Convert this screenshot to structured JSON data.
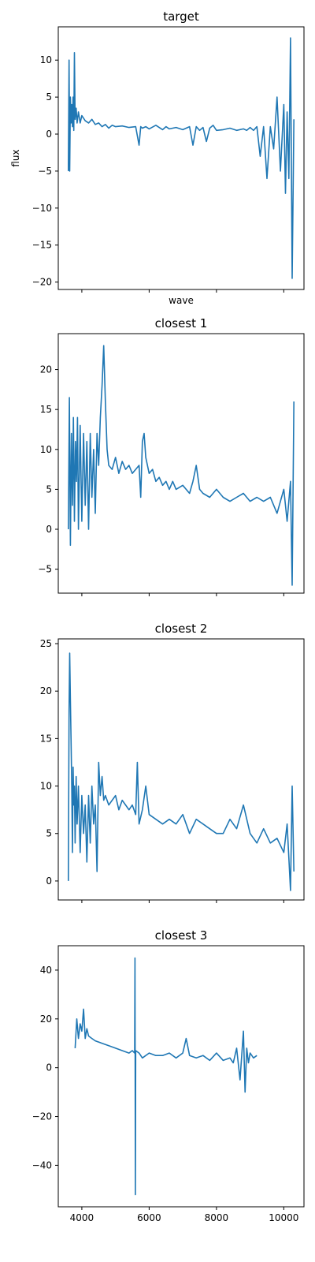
{
  "chart_data": [
    {
      "type": "line",
      "title": "target",
      "xlabel": "wave",
      "ylabel": "flux",
      "xlim": [
        3300,
        10600
      ],
      "ylim": [
        -21,
        14.5
      ],
      "xticks": [
        4000,
        6000,
        8000,
        10000
      ],
      "xticklabels": [],
      "yticks": [
        10,
        5,
        0,
        -5,
        -10,
        -15,
        -20
      ],
      "yticklabels": [
        "10",
        "5",
        "0",
        "−5",
        "−10",
        "−15",
        "−20"
      ],
      "color": "#1f77b4",
      "grid": false,
      "series": [
        {
          "x": [
            3600,
            3620,
            3640,
            3660,
            3680,
            3700,
            3720,
            3740,
            3760,
            3780,
            3800,
            3830,
            3860,
            3900,
            3950,
            4000,
            4100,
            4200,
            4300,
            4400,
            4500,
            4600,
            4700,
            4800,
            4900,
            5000,
            5200,
            5400,
            5600,
            5700,
            5750,
            5800,
            5900,
            6000,
            6200,
            6400,
            6500,
            6600,
            6800,
            7000,
            7200,
            7300,
            7400,
            7500,
            7600,
            7700,
            7800,
            7900,
            8000,
            8200,
            8400,
            8600,
            8800,
            8900,
            9000,
            9100,
            9200,
            9300,
            9400,
            9500,
            9600,
            9700,
            9800,
            9900,
            10000,
            10050,
            10100,
            10150,
            10200,
            10250,
            10300
          ],
          "y": [
            -5,
            10,
            -5,
            5,
            1.5,
            4,
            1,
            5,
            0.5,
            11,
            2,
            3.5,
            1.5,
            3,
            1.5,
            2.5,
            1.8,
            1.5,
            2,
            1.3,
            1.5,
            1,
            1.3,
            0.8,
            1.2,
            1,
            1.1,
            0.9,
            1,
            -1.5,
            1,
            0.8,
            1,
            0.7,
            1.2,
            0.6,
            1,
            0.7,
            0.9,
            0.6,
            1,
            -1.5,
            1,
            0.5,
            0.9,
            -1,
            0.8,
            1.2,
            0.5,
            0.6,
            0.8,
            0.5,
            0.7,
            0.5,
            0.9,
            0.5,
            1,
            -3,
            1,
            -6,
            1,
            -2,
            5,
            -5,
            4,
            -8,
            3,
            -6,
            13,
            -19.5,
            2
          ]
        }
      ]
    },
    {
      "type": "line",
      "title": "closest 1",
      "xlabel": "",
      "ylabel": "",
      "xlim": [
        3300,
        10600
      ],
      "ylim": [
        -8,
        24.5
      ],
      "xticks": [
        4000,
        6000,
        8000,
        10000
      ],
      "xticklabels": [],
      "yticks": [
        20,
        15,
        10,
        5,
        0,
        -5
      ],
      "yticklabels": [
        "20",
        "15",
        "10",
        "5",
        "0",
        "−5"
      ],
      "color": "#1f77b4",
      "grid": false,
      "series": [
        {
          "x": [
            3600,
            3630,
            3660,
            3690,
            3720,
            3750,
            3780,
            3810,
            3840,
            3870,
            3900,
            3950,
            4000,
            4050,
            4100,
            4150,
            4200,
            4250,
            4300,
            4350,
            4400,
            4450,
            4500,
            4550,
            4600,
            4650,
            4700,
            4750,
            4800,
            4900,
            5000,
            5100,
            5200,
            5300,
            5400,
            5500,
            5600,
            5700,
            5750,
            5800,
            5850,
            5900,
            6000,
            6100,
            6200,
            6300,
            6400,
            6500,
            6600,
            6700,
            6800,
            7000,
            7200,
            7300,
            7400,
            7500,
            7600,
            7800,
            8000,
            8200,
            8400,
            8600,
            8800,
            9000,
            9200,
            9400,
            9600,
            9800,
            10000,
            10100,
            10200,
            10250,
            10300
          ],
          "y": [
            0,
            16.5,
            -2,
            12,
            3,
            14,
            1,
            11,
            6,
            14,
            0,
            13,
            1,
            12,
            3,
            11,
            0,
            12,
            4,
            10,
            2,
            12,
            8,
            14,
            18,
            23,
            16,
            10,
            8,
            7.5,
            9,
            7,
            8.5,
            7.5,
            8,
            7,
            7.5,
            8,
            4,
            11,
            12,
            9,
            7,
            7.5,
            6,
            6.5,
            5.5,
            6,
            5,
            6,
            5,
            5.5,
            4.5,
            6,
            8,
            5,
            4.5,
            4,
            5,
            4,
            3.5,
            4,
            4.5,
            3.5,
            4,
            3.5,
            4,
            2,
            5,
            1,
            6,
            -7,
            16
          ]
        }
      ]
    },
    {
      "type": "line",
      "title": "closest 2",
      "xlabel": "",
      "ylabel": "",
      "xlim": [
        3300,
        10600
      ],
      "ylim": [
        -2,
        25.5
      ],
      "xticks": [
        4000,
        6000,
        8000,
        10000
      ],
      "xticklabels": [],
      "yticks": [
        25,
        20,
        15,
        10,
        5,
        0
      ],
      "yticklabels": [
        "25",
        "20",
        "15",
        "10",
        "5",
        "0"
      ],
      "color": "#1f77b4",
      "grid": false,
      "series": [
        {
          "x": [
            3600,
            3620,
            3640,
            3660,
            3680,
            3700,
            3720,
            3740,
            3760,
            3780,
            3800,
            3830,
            3860,
            3900,
            3950,
            4000,
            4050,
            4100,
            4150,
            4200,
            4250,
            4300,
            4350,
            4400,
            4450,
            4500,
            4550,
            4600,
            4650,
            4700,
            4800,
            4900,
            5000,
            5100,
            5200,
            5300,
            5400,
            5500,
            5600,
            5650,
            5700,
            5800,
            5900,
            6000,
            6200,
            6400,
            6600,
            6800,
            7000,
            7200,
            7400,
            7600,
            7800,
            8000,
            8200,
            8400,
            8600,
            8800,
            9000,
            9200,
            9400,
            9600,
            9800,
            10000,
            10100,
            10200,
            10250,
            10300
          ],
          "y": [
            0,
            18,
            24,
            19,
            15,
            10,
            3,
            12,
            8,
            10,
            4,
            11,
            6,
            10,
            3,
            9,
            5,
            8,
            2,
            9,
            4,
            10,
            6,
            8,
            1,
            12.5,
            9,
            11,
            8.5,
            9,
            8,
            8.5,
            9,
            7.5,
            8.5,
            8,
            7.5,
            8,
            7,
            12.5,
            6,
            7.5,
            10,
            7,
            6.5,
            6,
            6.5,
            6,
            7,
            5,
            6.5,
            6,
            5.5,
            5,
            5,
            6.5,
            5.5,
            8,
            5,
            4,
            5.5,
            4,
            4.5,
            3,
            6,
            -1,
            10,
            1
          ]
        }
      ]
    },
    {
      "type": "line",
      "title": "closest 3",
      "xlabel": "",
      "ylabel": "",
      "xlim": [
        3300,
        10600
      ],
      "ylim": [
        -57,
        50
      ],
      "xticks": [
        4000,
        6000,
        8000,
        10000
      ],
      "xticklabels": [
        "4000",
        "6000",
        "8000",
        "10000"
      ],
      "yticks": [
        40,
        20,
        0,
        -20,
        -40
      ],
      "yticklabels": [
        "40",
        "20",
        "0",
        "−20",
        "−40"
      ],
      "color": "#1f77b4",
      "grid": false,
      "series": [
        {
          "x": [
            3800,
            3850,
            3900,
            3950,
            4000,
            4050,
            4100,
            4150,
            4200,
            4300,
            4400,
            4600,
            4800,
            5000,
            5200,
            5400,
            5500,
            5570,
            5580,
            5590,
            5600,
            5700,
            5800,
            6000,
            6200,
            6400,
            6600,
            6800,
            7000,
            7100,
            7200,
            7400,
            7600,
            7800,
            8000,
            8200,
            8400,
            8500,
            8600,
            8700,
            8800,
            8850,
            8900,
            8950,
            9000,
            9100,
            9200
          ],
          "y": [
            8,
            20,
            12,
            18,
            15,
            24,
            12,
            16,
            13,
            12,
            11,
            10,
            9,
            8,
            7,
            6,
            7,
            6,
            45,
            -52,
            7,
            6,
            4,
            6,
            5,
            5,
            6,
            4,
            6,
            12,
            5,
            4,
            5,
            3,
            6,
            3,
            4,
            2,
            8,
            -5,
            15,
            -10,
            8,
            2,
            6,
            4,
            5
          ]
        }
      ]
    }
  ]
}
